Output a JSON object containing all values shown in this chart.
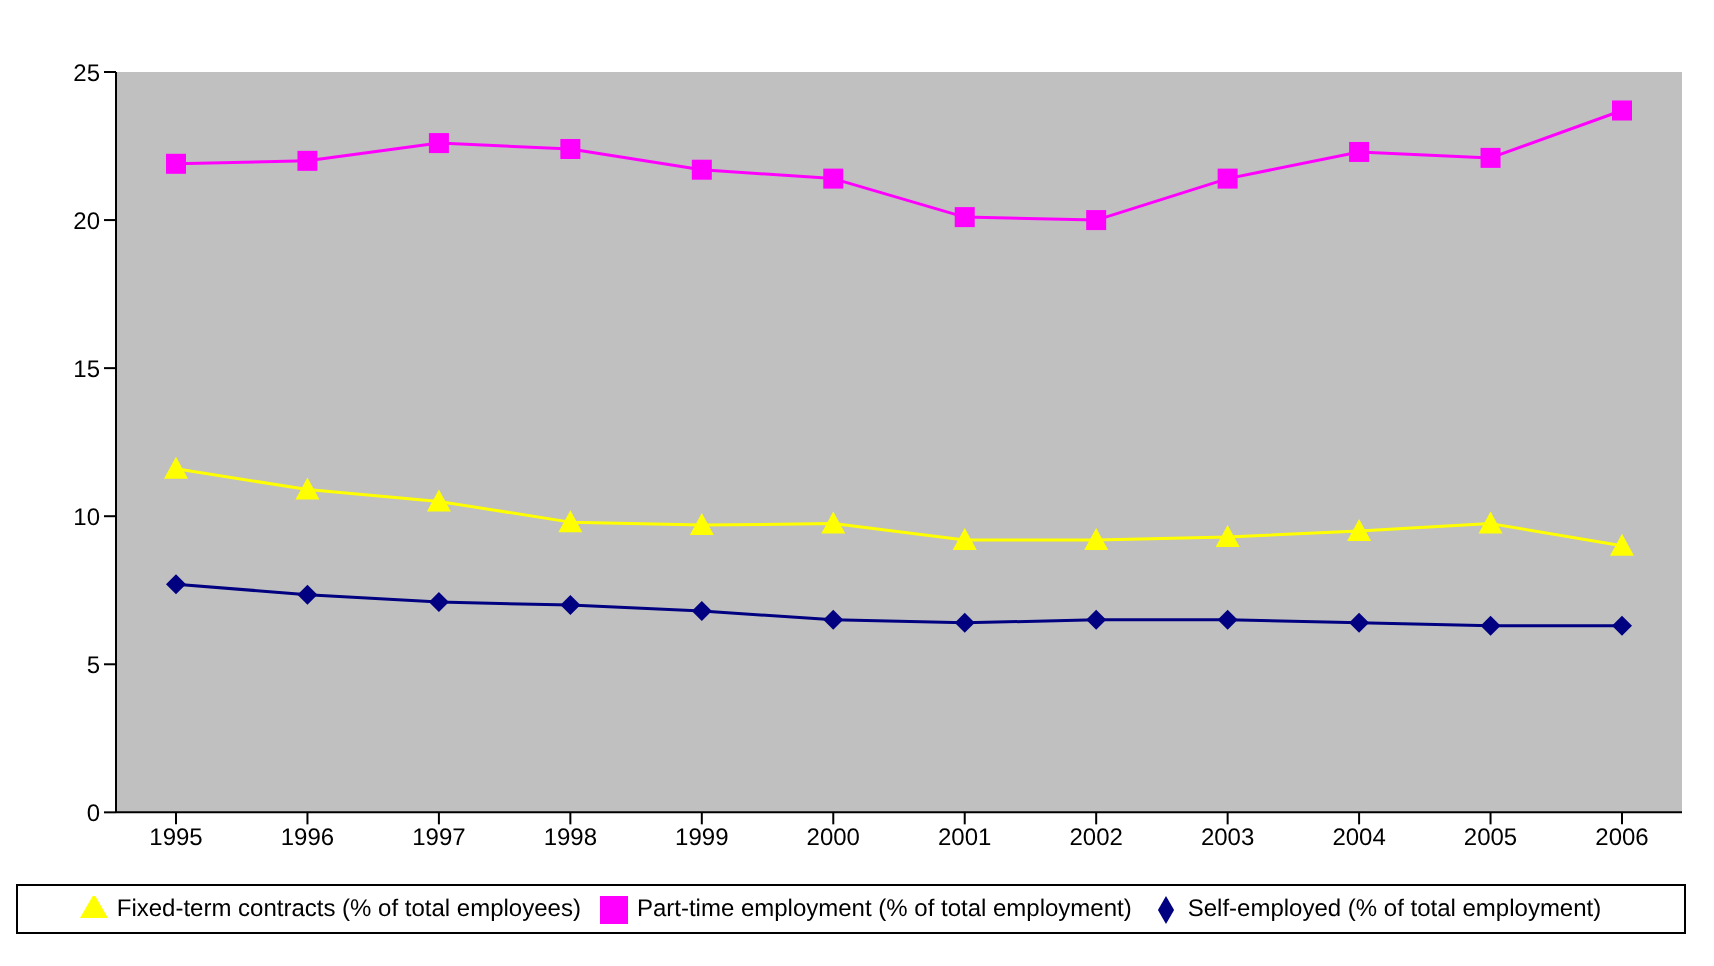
{
  "chart_data": {
    "type": "line",
    "categories": [
      "1995",
      "1996",
      "1997",
      "1998",
      "1999",
      "2000",
      "2001",
      "2002",
      "2003",
      "2004",
      "2005",
      "2006"
    ],
    "series": [
      {
        "name": "Self-employed (% of total employment)",
        "color": "#000080",
        "marker": "diamond",
        "values": [
          7.7,
          7.35,
          7.1,
          7.0,
          6.8,
          6.5,
          6.4,
          6.5,
          6.5,
          6.4,
          6.3,
          6.3
        ]
      },
      {
        "name": "Part-time employment (% of total employment)",
        "color": "#ff00ff",
        "marker": "square",
        "values": [
          21.9,
          22.0,
          22.6,
          22.4,
          21.7,
          21.4,
          20.1,
          20.0,
          21.4,
          22.3,
          22.1,
          23.7
        ]
      },
      {
        "name": "Fixed-term contracts (% of total employees)",
        "color": "#ffff00",
        "marker": "triangle",
        "values": [
          11.6,
          10.9,
          10.5,
          9.8,
          9.7,
          9.75,
          9.2,
          9.2,
          9.3,
          9.5,
          9.75,
          9.0
        ]
      }
    ],
    "ylim": [
      0,
      25
    ],
    "yticks": [
      0,
      5,
      10,
      15,
      20,
      25
    ],
    "legend": "bottom",
    "line_style": "solid"
  }
}
